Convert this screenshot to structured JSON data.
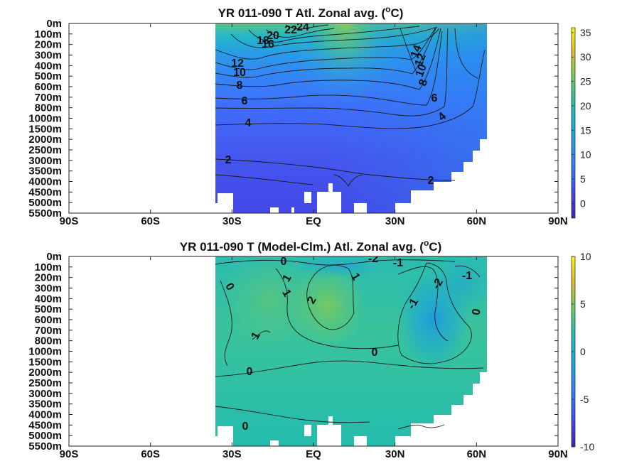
{
  "chart_data": [
    {
      "type": "heatmap",
      "title": "YR 011-090 T Atl. Zonal avg. (°C)",
      "title_main": "YR 011-090 T Atl. Zonal avg. (",
      "title_sup": "o",
      "title_tail": "C)",
      "x_ticks": [
        "90S",
        "60S",
        "30S",
        "EQ",
        "30N",
        "60N",
        "90N"
      ],
      "y_ticks": [
        "0m",
        "100m",
        "200m",
        "300m",
        "400m",
        "500m",
        "600m",
        "700m",
        "800m",
        "1000m",
        "1500m",
        "2000m",
        "2500m",
        "3000m",
        "3500m",
        "4000m",
        "4500m",
        "5000m",
        "5500m"
      ],
      "colorbar": {
        "ticks": [
          "35",
          "30",
          "25",
          "20",
          "15",
          "10",
          "5",
          "0"
        ],
        "clim": [
          -3,
          36
        ]
      },
      "data_extent_lat": [
        -35,
        65
      ],
      "contour_labels": [
        "24",
        "22",
        "20",
        "18",
        "16",
        "12",
        "10",
        "8",
        "6",
        "4",
        "2",
        "14",
        "12",
        "10",
        "8",
        "6",
        "4",
        "2"
      ],
      "grid": false
    },
    {
      "type": "heatmap",
      "title": "YR 011-090 T (Model-Clm.) Atl. Zonal avg. (°C)",
      "title_main": "YR 011-090 T (Model-Clm.) Atl. Zonal avg. (",
      "title_sup": "o",
      "title_tail": "C)",
      "x_ticks": [
        "90S",
        "60S",
        "30S",
        "EQ",
        "30N",
        "60N",
        "90N"
      ],
      "y_ticks": [
        "0m",
        "100m",
        "200m",
        "300m",
        "400m",
        "500m",
        "600m",
        "700m",
        "800m",
        "1000m",
        "1500m",
        "2000m",
        "2500m",
        "3000m",
        "3500m",
        "4000m",
        "4500m",
        "5000m",
        "5500m"
      ],
      "colorbar": {
        "ticks": [
          "10",
          "5",
          "0",
          "-5",
          "-10"
        ],
        "clim": [
          -10,
          10
        ]
      },
      "data_extent_lat": [
        -35,
        65
      ],
      "contour_labels": [
        "0",
        "1",
        "1",
        "0",
        "1",
        "2",
        "1",
        "-2",
        "-1",
        "-2",
        "-1",
        "-1",
        "0",
        "0",
        "0",
        "0",
        "0"
      ],
      "grid": false
    }
  ]
}
